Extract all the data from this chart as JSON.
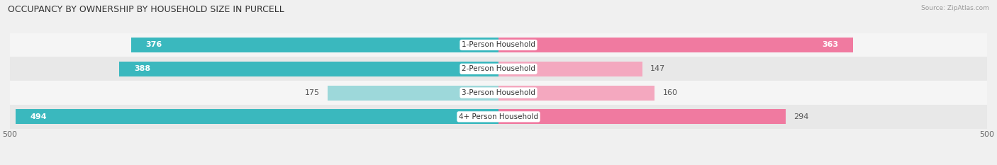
{
  "title": "OCCUPANCY BY OWNERSHIP BY HOUSEHOLD SIZE IN PURCELL",
  "source": "Source: ZipAtlas.com",
  "categories": [
    "4+ Person Household",
    "3-Person Household",
    "2-Person Household",
    "1-Person Household"
  ],
  "owner_values": [
    494,
    175,
    388,
    376
  ],
  "renter_values": [
    294,
    160,
    147,
    363
  ],
  "owner_colors": [
    "#3ab8be",
    "#9dd8da",
    "#3ab8be",
    "#3ab8be"
  ],
  "renter_colors": [
    "#f07aa0",
    "#f4a8bf",
    "#f4a8bf",
    "#f07aa0"
  ],
  "row_bg_colors": [
    "#e8e8e8",
    "#f5f5f5",
    "#e8e8e8",
    "#f5f5f5"
  ],
  "x_max": 500,
  "bar_height": 0.62,
  "owner_color_legend": "#3ab8be",
  "renter_color_legend": "#f07aa0",
  "title_fontsize": 9,
  "label_fontsize": 8,
  "axis_fontsize": 8,
  "category_fontsize": 7.5
}
